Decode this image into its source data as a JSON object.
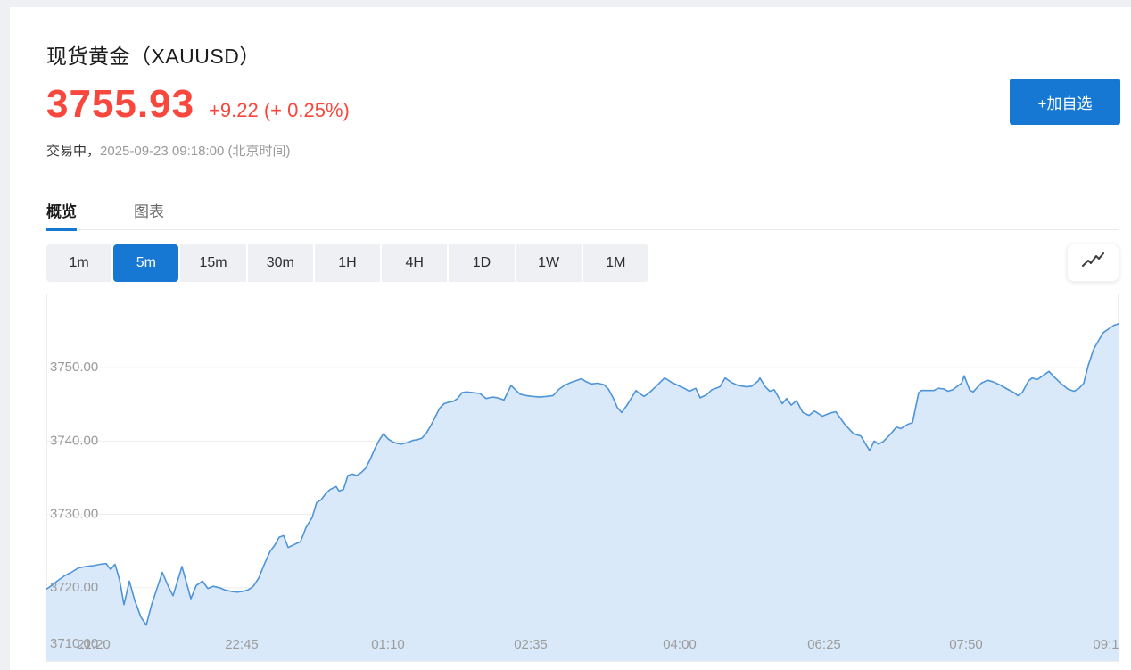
{
  "header": {
    "title": "现货黄金（XAUUSD）",
    "price": "3755.93",
    "change": "+9.22 (+ 0.25%)",
    "status": "交易中，",
    "timestamp": "2025-09-23 09:18:00 (北京时间)",
    "add_button_label": "+加自选"
  },
  "tabs": [
    {
      "label": "概览",
      "active": true
    },
    {
      "label": "图表",
      "active": false
    }
  ],
  "timeframes": {
    "items": [
      "1m",
      "5m",
      "15m",
      "30m",
      "1H",
      "4H",
      "1D",
      "1W",
      "1M"
    ],
    "active_index": 1
  },
  "colors": {
    "accent_blue": "#1678d3",
    "price_red": "#f8473d"
  },
  "chart_data": {
    "type": "area",
    "title": "",
    "xlabel": "",
    "ylabel": "",
    "ylim": [
      3710,
      3760
    ],
    "grid": "horizontal",
    "legend": "none",
    "colors": {
      "line": "#4e94d8",
      "fill": "#d9e9fa",
      "grid": "#ededed",
      "axis_text": "#9b9b9b"
    },
    "y_ticks": [
      {
        "v": 3750,
        "label": "3750.00"
      },
      {
        "v": 3740,
        "label": "3740.00"
      },
      {
        "v": 3730,
        "label": "3730.00"
      },
      {
        "v": 3720,
        "label": "3720.00"
      },
      {
        "v": 3710,
        "label": "3710.00"
      }
    ],
    "x_ticks": [
      {
        "pos": 53,
        "label": "21:20"
      },
      {
        "pos": 219,
        "label": "22:45"
      },
      {
        "pos": 383,
        "label": "01:10"
      },
      {
        "pos": 543,
        "label": "02:35"
      },
      {
        "pos": 710,
        "label": "04:00"
      },
      {
        "pos": 872,
        "label": "06:25"
      },
      {
        "pos": 1031,
        "label": "07:50"
      },
      {
        "pos": 1188,
        "label": "09:1"
      }
    ],
    "series": [
      {
        "name": "XAUUSD",
        "points": [
          [
            0,
            3719.8
          ],
          [
            6,
            3720.3
          ],
          [
            13,
            3721.0
          ],
          [
            20,
            3721.6
          ],
          [
            28,
            3722.1
          ],
          [
            36,
            3722.7
          ],
          [
            44,
            3722.9
          ],
          [
            52,
            3723.0
          ],
          [
            60,
            3723.2
          ],
          [
            67,
            3723.3
          ],
          [
            72,
            3722.5
          ],
          [
            77,
            3723.2
          ],
          [
            82,
            3721.1
          ],
          [
            87,
            3717.7
          ],
          [
            93,
            3720.9
          ],
          [
            99,
            3718.3
          ],
          [
            106,
            3716.0
          ],
          [
            112,
            3714.9
          ],
          [
            118,
            3717.7
          ],
          [
            124,
            3719.9
          ],
          [
            130,
            3722.1
          ],
          [
            137,
            3720.1
          ],
          [
            142,
            3718.9
          ],
          [
            147,
            3720.9
          ],
          [
            152,
            3722.9
          ],
          [
            157,
            3720.7
          ],
          [
            162,
            3718.5
          ],
          [
            168,
            3720.3
          ],
          [
            175,
            3720.9
          ],
          [
            181,
            3719.9
          ],
          [
            187,
            3720.2
          ],
          [
            194,
            3720.0
          ],
          [
            200,
            3719.7
          ],
          [
            207,
            3719.5
          ],
          [
            214,
            3719.4
          ],
          [
            220,
            3719.5
          ],
          [
            226,
            3719.7
          ],
          [
            232,
            3720.2
          ],
          [
            238,
            3721.3
          ],
          [
            245,
            3723.4
          ],
          [
            251,
            3725.0
          ],
          [
            256,
            3725.8
          ],
          [
            261,
            3726.9
          ],
          [
            266,
            3727.1
          ],
          [
            271,
            3725.5
          ],
          [
            278,
            3725.9
          ],
          [
            285,
            3726.3
          ],
          [
            291,
            3728.2
          ],
          [
            298,
            3729.6
          ],
          [
            303,
            3731.6
          ],
          [
            308,
            3732.0
          ],
          [
            313,
            3732.8
          ],
          [
            318,
            3733.4
          ],
          [
            325,
            3733.8
          ],
          [
            328,
            3733.2
          ],
          [
            333,
            3733.4
          ],
          [
            338,
            3735.3
          ],
          [
            343,
            3735.5
          ],
          [
            348,
            3735.3
          ],
          [
            353,
            3735.7
          ],
          [
            358,
            3736.3
          ],
          [
            363,
            3737.5
          ],
          [
            368,
            3738.9
          ],
          [
            373,
            3740.1
          ],
          [
            378,
            3741.0
          ],
          [
            383,
            3740.3
          ],
          [
            388,
            3739.9
          ],
          [
            393,
            3739.7
          ],
          [
            398,
            3739.6
          ],
          [
            405,
            3739.8
          ],
          [
            411,
            3740.1
          ],
          [
            416,
            3740.2
          ],
          [
            421,
            3740.4
          ],
          [
            426,
            3741.1
          ],
          [
            431,
            3742.1
          ],
          [
            436,
            3743.3
          ],
          [
            441,
            3744.5
          ],
          [
            446,
            3745.1
          ],
          [
            451,
            3745.3
          ],
          [
            456,
            3745.4
          ],
          [
            461,
            3745.8
          ],
          [
            466,
            3746.6
          ],
          [
            471,
            3746.7
          ],
          [
            478,
            3746.6
          ],
          [
            486,
            3746.5
          ],
          [
            493,
            3745.8
          ],
          [
            500,
            3746.0
          ],
          [
            506,
            3745.9
          ],
          [
            513,
            3745.6
          ],
          [
            521,
            3747.6
          ],
          [
            525,
            3747.1
          ],
          [
            531,
            3746.4
          ],
          [
            538,
            3746.2
          ],
          [
            545,
            3746.1
          ],
          [
            553,
            3746.0
          ],
          [
            561,
            3746.1
          ],
          [
            568,
            3746.2
          ],
          [
            575,
            3747.1
          ],
          [
            581,
            3747.6
          ],
          [
            588,
            3748.0
          ],
          [
            595,
            3748.3
          ],
          [
            600,
            3748.5
          ],
          [
            605,
            3748.1
          ],
          [
            611,
            3747.8
          ],
          [
            618,
            3747.9
          ],
          [
            625,
            3747.7
          ],
          [
            630,
            3747.1
          ],
          [
            635,
            3746.0
          ],
          [
            640,
            3744.6
          ],
          [
            645,
            3743.9
          ],
          [
            651,
            3744.9
          ],
          [
            656,
            3745.9
          ],
          [
            661,
            3746.9
          ],
          [
            665,
            3746.5
          ],
          [
            670,
            3746.1
          ],
          [
            675,
            3746.5
          ],
          [
            683,
            3747.4
          ],
          [
            693,
            3748.6
          ],
          [
            696,
            3748.4
          ],
          [
            701,
            3748.0
          ],
          [
            708,
            3747.6
          ],
          [
            715,
            3747.2
          ],
          [
            721,
            3746.8
          ],
          [
            728,
            3747.2
          ],
          [
            733,
            3745.9
          ],
          [
            740,
            3746.3
          ],
          [
            746,
            3747.0
          ],
          [
            755,
            3747.4
          ],
          [
            761,
            3748.6
          ],
          [
            768,
            3748.0
          ],
          [
            775,
            3747.6
          ],
          [
            785,
            3747.4
          ],
          [
            791,
            3747.5
          ],
          [
            798,
            3748.2
          ],
          [
            800,
            3748.6
          ],
          [
            806,
            3747.4
          ],
          [
            811,
            3746.8
          ],
          [
            816,
            3747.0
          ],
          [
            825,
            3745.1
          ],
          [
            830,
            3745.8
          ],
          [
            835,
            3744.9
          ],
          [
            841,
            3745.5
          ],
          [
            848,
            3743.9
          ],
          [
            855,
            3743.5
          ],
          [
            861,
            3744.1
          ],
          [
            870,
            3743.4
          ],
          [
            878,
            3743.8
          ],
          [
            885,
            3744.0
          ],
          [
            895,
            3742.3
          ],
          [
            905,
            3741.0
          ],
          [
            913,
            3740.7
          ],
          [
            923,
            3738.7
          ],
          [
            928,
            3740.0
          ],
          [
            933,
            3739.6
          ],
          [
            938,
            3739.9
          ],
          [
            946,
            3740.9
          ],
          [
            953,
            3741.9
          ],
          [
            958,
            3741.7
          ],
          [
            966,
            3742.3
          ],
          [
            971,
            3742.5
          ],
          [
            978,
            3746.6
          ],
          [
            981,
            3746.9
          ],
          [
            995,
            3746.9
          ],
          [
            1000,
            3747.2
          ],
          [
            1006,
            3747.1
          ],
          [
            1011,
            3746.8
          ],
          [
            1016,
            3747.0
          ],
          [
            1026,
            3747.9
          ],
          [
            1029,
            3748.9
          ],
          [
            1035,
            3747.0
          ],
          [
            1039,
            3746.7
          ],
          [
            1048,
            3747.9
          ],
          [
            1055,
            3748.3
          ],
          [
            1061,
            3748.1
          ],
          [
            1070,
            3747.6
          ],
          [
            1077,
            3747.1
          ],
          [
            1085,
            3746.6
          ],
          [
            1089,
            3746.2
          ],
          [
            1094,
            3746.6
          ],
          [
            1101,
            3748.2
          ],
          [
            1105,
            3748.6
          ],
          [
            1111,
            3748.4
          ],
          [
            1117,
            3748.9
          ],
          [
            1124,
            3749.5
          ],
          [
            1131,
            3748.6
          ],
          [
            1138,
            3747.8
          ],
          [
            1145,
            3747.1
          ],
          [
            1152,
            3746.8
          ],
          [
            1157,
            3747.1
          ],
          [
            1163,
            3747.9
          ],
          [
            1168,
            3750.3
          ],
          [
            1174,
            3752.5
          ],
          [
            1180,
            3753.8
          ],
          [
            1185,
            3754.8
          ],
          [
            1191,
            3755.3
          ],
          [
            1197,
            3755.8
          ],
          [
            1202,
            3756.0
          ]
        ]
      }
    ]
  }
}
